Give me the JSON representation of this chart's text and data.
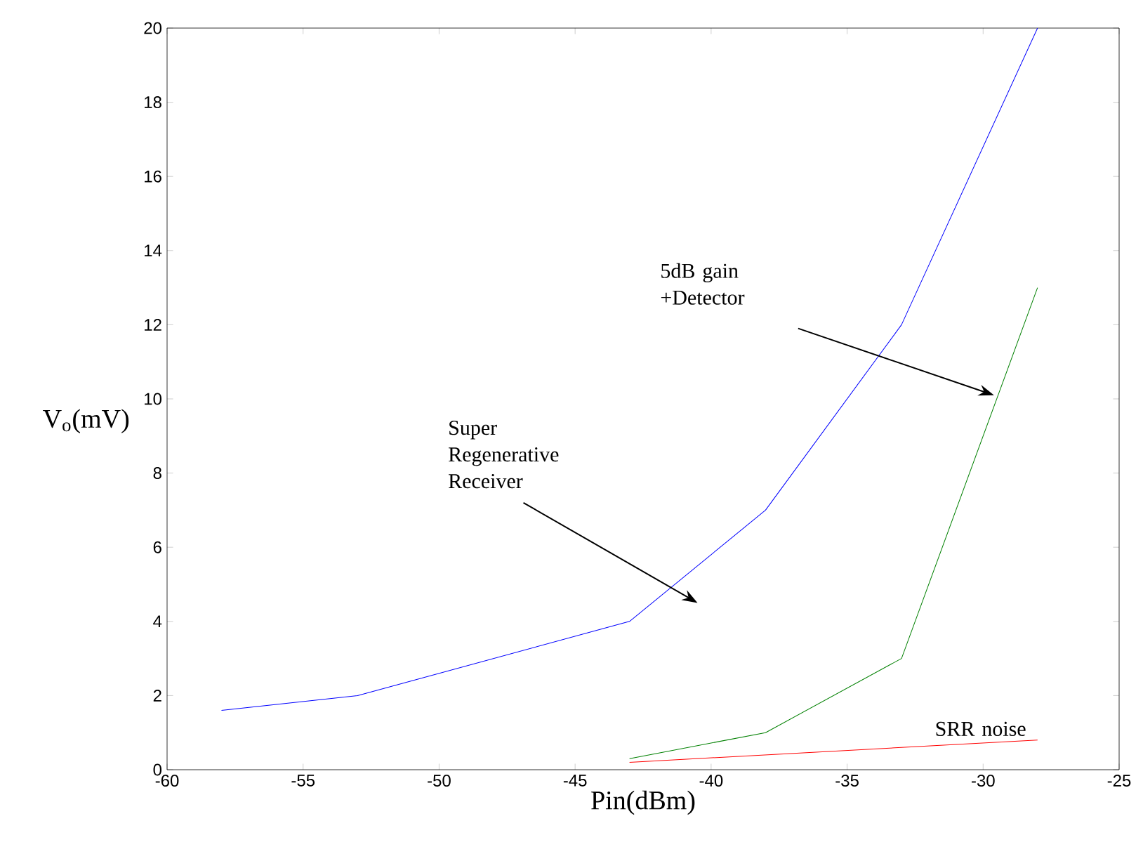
{
  "chart_data": {
    "type": "line",
    "xlabel": "Pin(dBm)",
    "ylabel": "V$_{o}$(mV)",
    "xlim": [
      -60,
      -25
    ],
    "ylim": [
      0,
      20
    ],
    "xticks": [
      -60,
      -55,
      -50,
      -45,
      -40,
      -35,
      -30,
      -25
    ],
    "yticks": [
      0,
      2,
      4,
      6,
      8,
      10,
      12,
      14,
      16,
      18,
      20
    ],
    "series": [
      {
        "color": "#0000ff",
        "x": [
          -58,
          -53,
          -43,
          -38,
          -33,
          -28
        ],
        "values": [
          1.6,
          2.0,
          4.0,
          7.0,
          12.0,
          20.0
        ]
      },
      {
        "color": "#008000",
        "x": [
          -43,
          -38,
          -33,
          -28
        ],
        "values": [
          0.3,
          1.0,
          3.0,
          13.0
        ]
      },
      {
        "color": "#ff0000",
        "x": [
          -43,
          -28
        ],
        "values": [
          0.2,
          0.8
        ]
      }
    ],
    "annotations": [
      "5dB gain +Detector",
      "Super Regenerative Receiver",
      "SRR noise"
    ],
    "grid": false,
    "marker": "none",
    "line_style": "solid"
  }
}
